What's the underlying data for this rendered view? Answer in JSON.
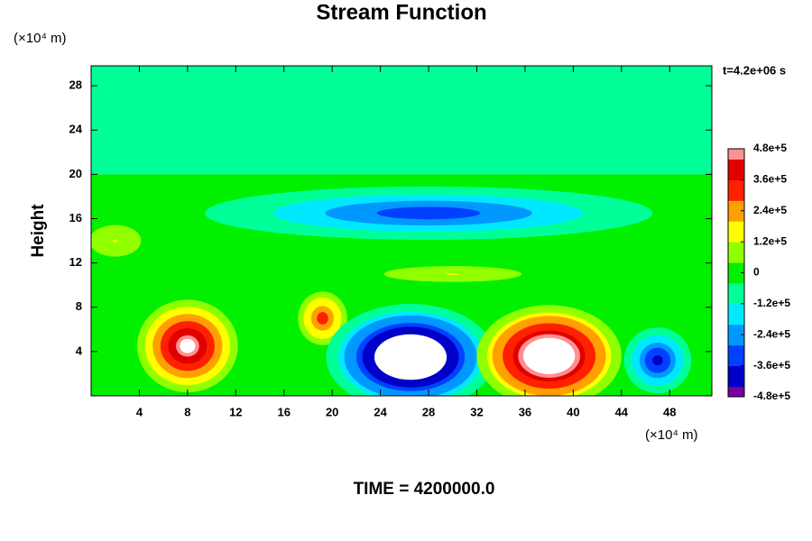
{
  "chart_data": {
    "type": "contour",
    "title": "Stream Function",
    "y_unit_label": "(×10⁴ m)",
    "x_unit_label": "(×10⁴ m)",
    "ylabel": "Height",
    "time_annotation": "t=4.2e+06 s",
    "footer": "TIME = 4200000.0",
    "xlim": [
      0,
      51.5
    ],
    "ylim": [
      0,
      29.8
    ],
    "xticks": [
      4,
      8,
      12,
      16,
      20,
      24,
      28,
      32,
      36,
      40,
      44,
      48
    ],
    "yticks": [
      4,
      8,
      12,
      16,
      20,
      24,
      28
    ],
    "clim": [
      -480000,
      480000
    ],
    "cticks": [
      {
        "value": 480000,
        "label": "4.8e+5"
      },
      {
        "value": 360000,
        "label": "3.6e+5"
      },
      {
        "value": 240000,
        "label": "2.4e+5"
      },
      {
        "value": 120000,
        "label": "1.2e+5"
      },
      0,
      {
        "value": -120000,
        "label": "-1.2e+5"
      },
      {
        "value": -240000,
        "label": "-2.4e+5"
      },
      {
        "value": -360000,
        "label": "-3.6e+5"
      },
      {
        "value": -480000,
        "label": "-4.8e+5"
      }
    ],
    "colormap": [
      "#7a00a0",
      "#0000c8",
      "#0040ff",
      "#0098ff",
      "#00e8ff",
      "#00ff98",
      "#00f000",
      "#90ff00",
      "#ffff00",
      "#ffa000",
      "#ff2000",
      "#e00000",
      "#ff9090"
    ],
    "over_color": "#ffffff",
    "bands": [
      {
        "y": [
          20,
          29.8
        ],
        "value": -80000
      },
      {
        "y": [
          0,
          20
        ],
        "value": 0
      }
    ],
    "features": [
      {
        "x": 28,
        "y": 16.5,
        "rx": 20,
        "ry": 2.6,
        "value": -330000
      },
      {
        "x": 2,
        "y": 14,
        "rx": 3,
        "ry": 2,
        "value": 120000
      },
      {
        "x": 30,
        "y": 11,
        "rx": 8,
        "ry": 1,
        "value": 120000
      },
      {
        "x": 8,
        "y": 4.5,
        "rx": 4.5,
        "ry": 4.5,
        "value": 520000
      },
      {
        "x": 19.2,
        "y": 7,
        "rx": 2.2,
        "ry": 2.6,
        "value": 340000
      },
      {
        "x": 26.5,
        "y": 3.5,
        "rx": 7,
        "ry": 4.8,
        "value": -760000
      },
      {
        "x": 38,
        "y": 3.6,
        "rx": 6,
        "ry": 4.6,
        "value": 700000
      },
      {
        "x": 47,
        "y": 3.2,
        "rx": 3,
        "ry": 3.2,
        "value": -400000
      }
    ]
  }
}
